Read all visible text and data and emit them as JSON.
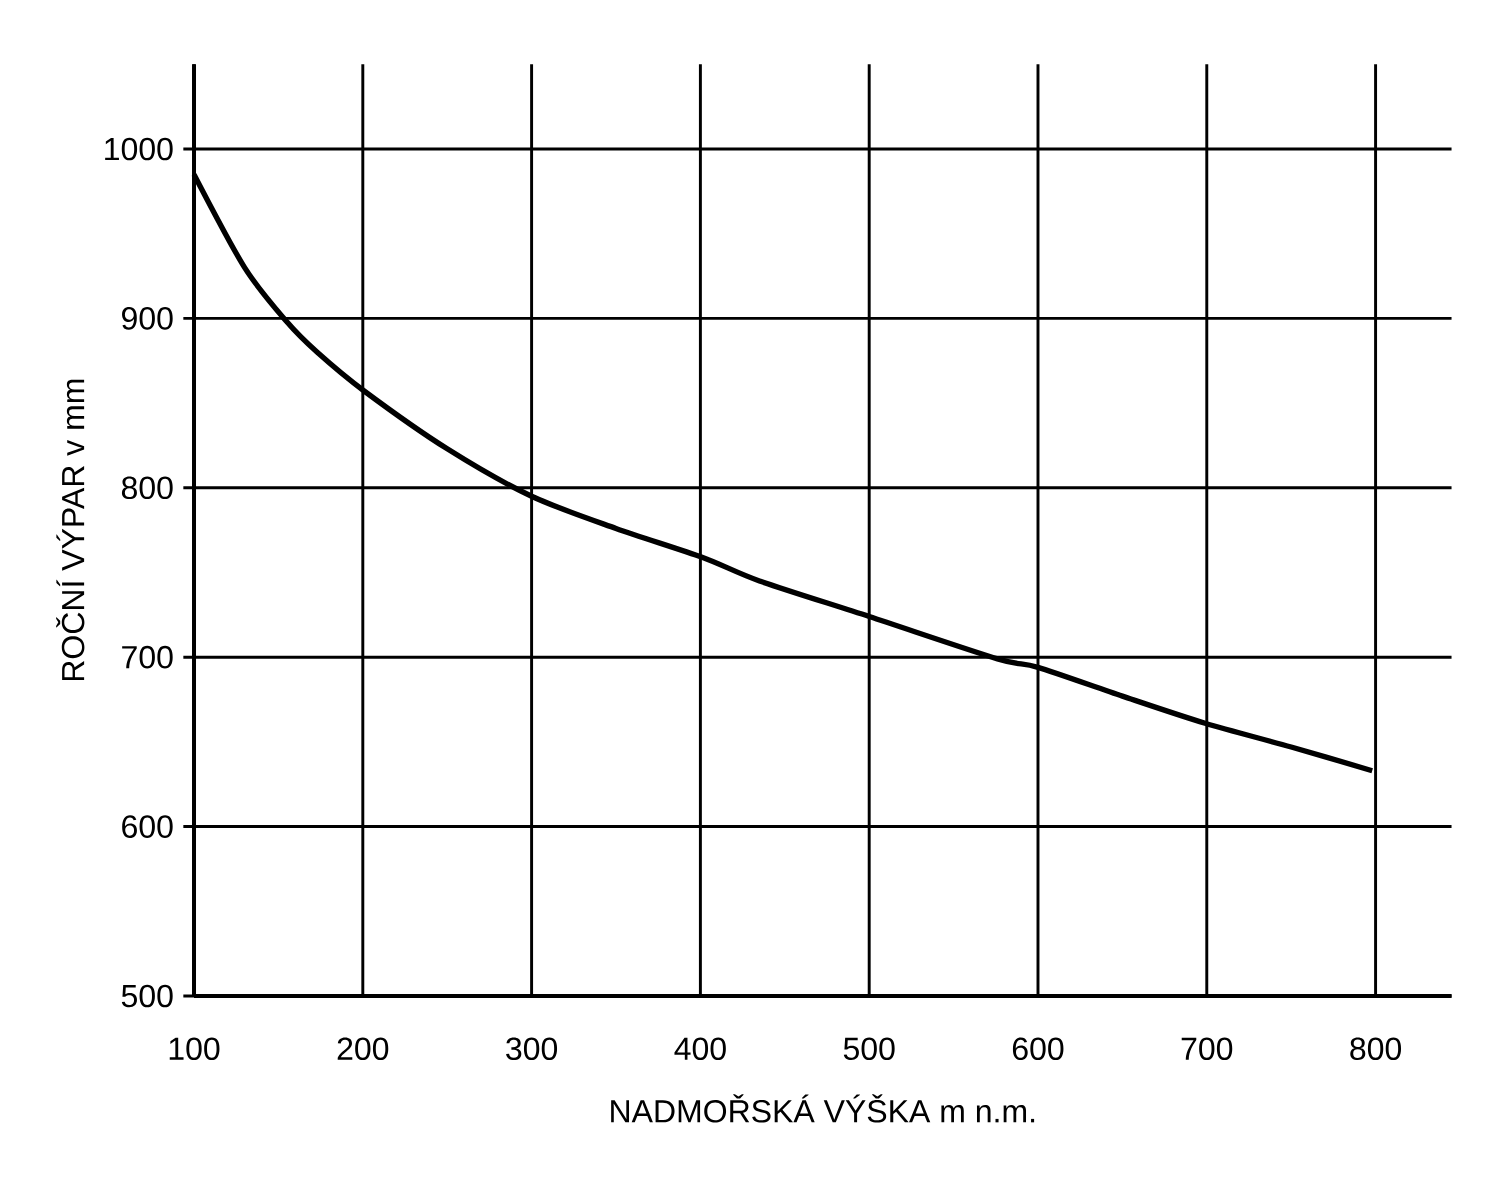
{
  "chart_data": {
    "type": "line",
    "xlabel": "NADMOŘSKÁ VÝŠKA  m n.m.",
    "ylabel": "ROČNÍ  VÝPAR  v  mm",
    "x": [
      100,
      130,
      155,
      173,
      201,
      250,
      300,
      350,
      401,
      435,
      500,
      576,
      600,
      650,
      699,
      750,
      798
    ],
    "values": [
      985,
      930,
      898,
      880,
      857,
      823,
      795,
      776,
      759,
      745,
      724,
      699,
      694,
      677,
      661,
      647,
      633
    ],
    "color": "#000000",
    "line_style": "solid",
    "marker": "none",
    "xlim": [
      100,
      845
    ],
    "ylim": [
      500,
      1050
    ],
    "xticks": [
      100,
      200,
      300,
      400,
      500,
      600,
      700,
      800
    ],
    "yticks": [
      500,
      600,
      700,
      800,
      900,
      1000
    ],
    "grid": true
  }
}
